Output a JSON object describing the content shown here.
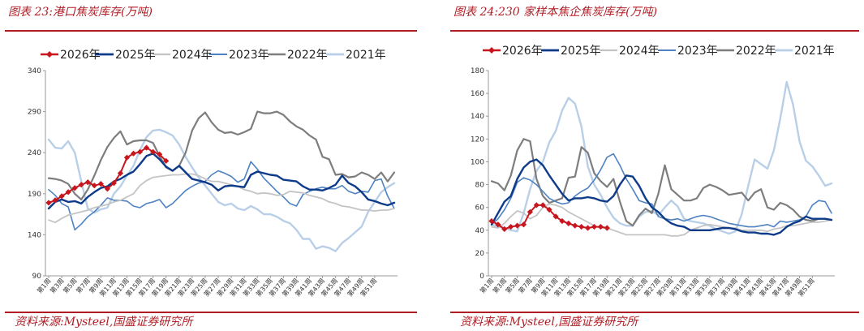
{
  "charts": [
    {
      "title": "图表 23:港口焦炭库存(万吨)",
      "source": "资料来源:Mysteel,国盛证券研究所"
    },
    {
      "title": "图表 24:230 家样本焦企焦炭库存(万吨)",
      "source": "资料来源:Mysteel,国盛证券研究所"
    }
  ],
  "chart_data": [
    {
      "type": "line",
      "ylim": [
        90,
        340
      ],
      "yticks": [
        90,
        140,
        190,
        240,
        290,
        340
      ],
      "xtick_labels": [
        "第1周",
        "第3周",
        "第5周",
        "第7周",
        "第9周",
        "第11周",
        "第13周",
        "第15周",
        "第17周",
        "第19周",
        "第21周",
        "第23周",
        "第25周",
        "第27周",
        "第29周",
        "第31周",
        "第33周",
        "第35周",
        "第37周",
        "第39周",
        "第41周",
        "第43周",
        "第45周",
        "第47周",
        "第49周",
        "第51周"
      ],
      "legend_position": "top",
      "series": [
        {
          "name": "2026年",
          "color": "#c8161e",
          "marker": "diamond",
          "width": 2,
          "values": [
            179,
            182,
            187,
            192,
            197,
            201,
            204,
            200,
            202,
            196,
            203,
            215,
            234,
            239,
            241,
            246,
            241,
            238,
            230
          ]
        },
        {
          "name": "2025年",
          "color": "#0d3b8a",
          "width": 2.4,
          "values": [
            172,
            180,
            183,
            180,
            181,
            178,
            186,
            192,
            197,
            199,
            205,
            208,
            213,
            217,
            226,
            236,
            239,
            232,
            223,
            218,
            224,
            216,
            208,
            206,
            204,
            201,
            194,
            199,
            200,
            199,
            198,
            213,
            217,
            215,
            213,
            212,
            207,
            206,
            205,
            199,
            195,
            195,
            194,
            197,
            201,
            212,
            203,
            199,
            192,
            183,
            181,
            178,
            176,
            179
          ]
        },
        {
          "name": "2024年",
          "color": "#c4c4c4",
          "width": 1.8,
          "values": [
            158,
            155,
            160,
            164,
            166,
            168,
            170,
            173,
            175,
            177,
            180,
            182,
            186,
            190,
            200,
            206,
            210,
            211,
            212,
            213,
            213,
            214,
            214,
            212,
            208,
            205,
            205,
            203,
            201,
            199,
            195,
            193,
            190,
            191,
            190,
            188,
            189,
            193,
            192,
            191,
            188,
            186,
            184,
            180,
            178,
            175,
            174,
            172,
            170,
            170,
            169,
            170,
            170,
            172
          ]
        },
        {
          "name": "2023年",
          "color": "#4e82c2",
          "width": 1.6,
          "values": [
            195,
            188,
            178,
            174,
            146,
            153,
            162,
            168,
            176,
            185,
            182,
            182,
            181,
            175,
            173,
            178,
            180,
            183,
            173,
            178,
            186,
            194,
            199,
            203,
            205,
            213,
            218,
            215,
            211,
            204,
            208,
            229,
            220,
            209,
            201,
            193,
            186,
            178,
            175,
            189,
            193,
            196,
            198,
            196,
            196,
            200,
            193,
            190,
            193,
            192,
            206,
            208,
            187,
            172
          ]
        },
        {
          "name": "2022年",
          "color": "#7d7d7d",
          "width": 2.2,
          "values": [
            209,
            208,
            206,
            202,
            190,
            183,
            195,
            212,
            231,
            247,
            258,
            266,
            250,
            254,
            255,
            255,
            252,
            236,
            222,
            218,
            224,
            240,
            267,
            282,
            289,
            277,
            268,
            264,
            265,
            262,
            265,
            269,
            290,
            288,
            288,
            290,
            286,
            278,
            272,
            268,
            261,
            256,
            235,
            232,
            213,
            214,
            210,
            211,
            216,
            213,
            208,
            216,
            205,
            216
          ]
        },
        {
          "name": "2021年",
          "color": "#b9cfe8",
          "width": 2.4,
          "values": [
            256,
            246,
            245,
            254,
            240,
            205,
            172,
            167,
            171,
            173,
            190,
            199,
            212,
            224,
            243,
            259,
            267,
            268,
            265,
            261,
            250,
            235,
            222,
            210,
            200,
            190,
            180,
            176,
            178,
            172,
            170,
            175,
            171,
            165,
            165,
            162,
            157,
            154,
            146,
            135,
            135,
            123,
            126,
            124,
            120,
            130,
            136,
            143,
            150,
            168,
            180,
            192,
            198,
            203
          ]
        }
      ]
    },
    {
      "type": "line",
      "ylim": [
        0,
        180
      ],
      "yticks": [
        0,
        20,
        40,
        60,
        80,
        100,
        120,
        140,
        160,
        180
      ],
      "xtick_labels": [
        "第1周",
        "第3周",
        "第5周",
        "第7周",
        "第9周",
        "第11周",
        "第13周",
        "第15周",
        "第17周",
        "第19周",
        "第21周",
        "第23周",
        "第25周",
        "第27周",
        "第29周",
        "第31周",
        "第33周",
        "第35周",
        "第37周",
        "第39周",
        "第41周",
        "第43周",
        "第45周",
        "第47周",
        "第49周",
        "第51周"
      ],
      "legend_position": "top",
      "series": [
        {
          "name": "2026年",
          "color": "#c8161e",
          "marker": "diamond",
          "width": 2,
          "values": [
            48,
            45,
            41,
            43,
            44,
            45,
            56,
            62,
            62,
            58,
            52,
            48,
            46,
            44,
            43,
            42,
            43,
            43,
            42
          ]
        },
        {
          "name": "2025年",
          "color": "#0d3b8a",
          "width": 2.4,
          "values": [
            45,
            55,
            65,
            70,
            85,
            95,
            100,
            102,
            97,
            88,
            80,
            72,
            66,
            68,
            68,
            69,
            68,
            66,
            65,
            70,
            80,
            88,
            87,
            79,
            68,
            60,
            56,
            50,
            46,
            44,
            43,
            40,
            40,
            40,
            40,
            41,
            42,
            42,
            41,
            39,
            38,
            38,
            37,
            37,
            36,
            38,
            43,
            46,
            48,
            52,
            50,
            50,
            50,
            49
          ]
        },
        {
          "name": "2024年",
          "color": "#c4c4c4",
          "width": 1.8,
          "values": [
            43,
            42,
            46,
            52,
            57,
            55,
            50,
            53,
            60,
            63,
            62,
            60,
            56,
            53,
            50,
            47,
            44,
            42,
            42,
            40,
            38,
            36,
            36,
            36,
            36,
            36,
            36,
            36,
            35,
            35,
            36,
            40,
            42,
            44,
            45,
            44,
            43,
            42,
            42,
            40,
            40,
            40,
            40,
            39,
            41,
            42,
            44,
            44,
            45,
            46,
            47,
            47,
            48,
            49
          ]
        },
        {
          "name": "2023年",
          "color": "#4e82c2",
          "width": 1.6,
          "values": [
            45,
            50,
            58,
            68,
            82,
            86,
            84,
            80,
            74,
            68,
            65,
            63,
            64,
            70,
            74,
            77,
            84,
            93,
            104,
            107,
            97,
            85,
            76,
            66,
            64,
            63,
            52,
            50,
            49,
            50,
            48,
            50,
            52,
            53,
            52,
            50,
            48,
            46,
            45,
            44,
            43,
            43,
            44,
            45,
            43,
            48,
            47,
            48,
            49,
            52,
            62,
            66,
            65,
            55
          ]
        },
        {
          "name": "2022年",
          "color": "#7d7d7d",
          "width": 2.2,
          "values": [
            83,
            81,
            75,
            88,
            110,
            120,
            118,
            85,
            70,
            64,
            66,
            68,
            86,
            87,
            113,
            108,
            90,
            83,
            78,
            85,
            65,
            48,
            44,
            53,
            59,
            55,
            72,
            97,
            76,
            71,
            66,
            66,
            68,
            77,
            80,
            78,
            75,
            71,
            72,
            73,
            66,
            73,
            76,
            60,
            58,
            64,
            62,
            58,
            52,
            49,
            48,
            50,
            50,
            49
          ]
        },
        {
          "name": "2021年",
          "color": "#b9cfe8",
          "width": 2.4,
          "values": [
            45,
            43,
            42,
            40,
            39,
            55,
            76,
            92,
            100,
            117,
            127,
            145,
            156,
            151,
            131,
            96,
            80,
            71,
            60,
            51,
            46,
            44,
            44,
            52,
            56,
            57,
            53,
            60,
            66,
            61,
            50,
            48,
            47,
            46,
            44,
            41,
            39,
            37,
            39,
            54,
            79,
            102,
            98,
            94,
            110,
            138,
            170,
            150,
            118,
            101,
            96,
            88,
            79,
            81
          ]
        }
      ]
    }
  ]
}
